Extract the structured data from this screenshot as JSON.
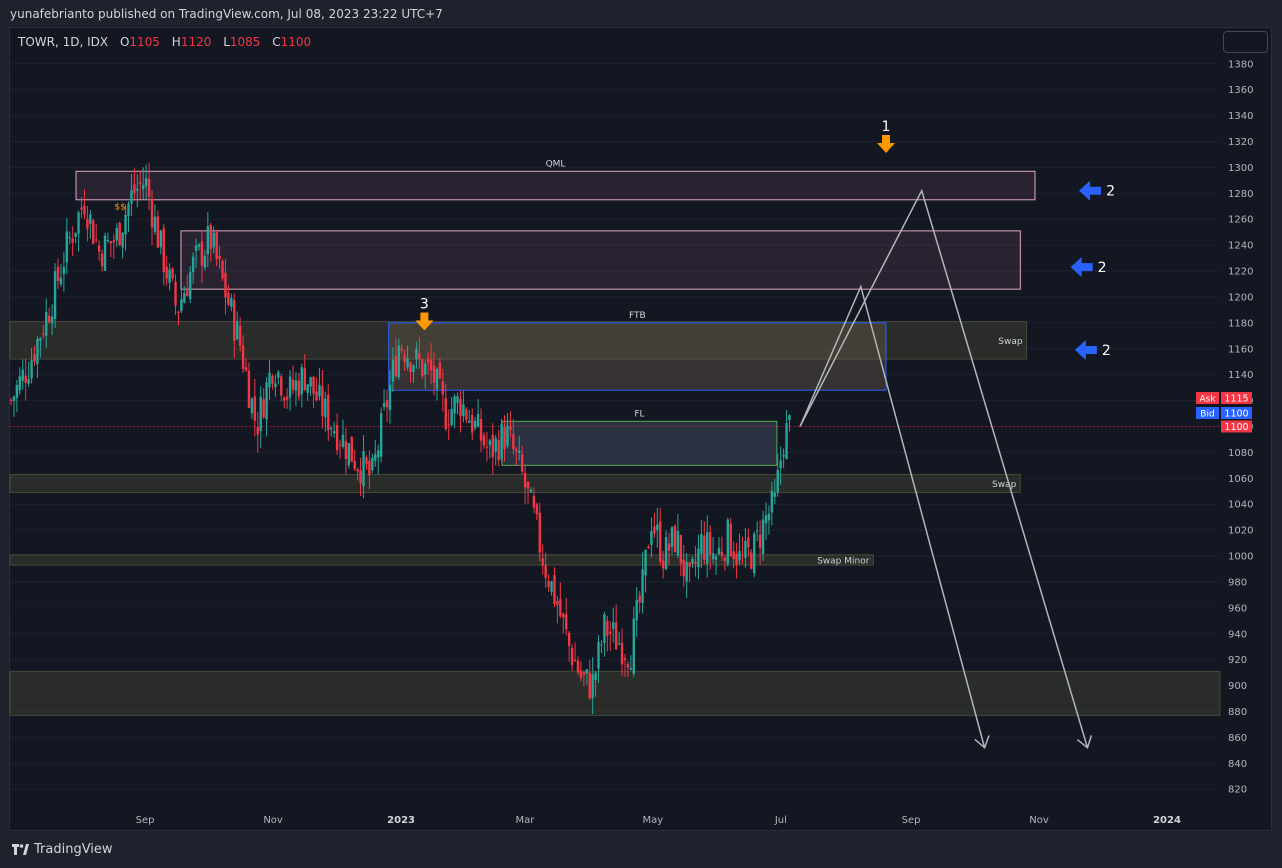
{
  "header": {
    "published": "yunafebrianto published on TradingView.com, Jul 08, 2023 23:22 UTC+7"
  },
  "symbol": {
    "name": "TOWR, 1D, IDX",
    "o_label": "O",
    "o_value": "1105",
    "h_label": "H",
    "h_value": "1120",
    "l_label": "L",
    "l_value": "1085",
    "c_label": "C",
    "c_value": "1100"
  },
  "footer": {
    "brand": "TradingView"
  },
  "colors": {
    "up": "#26a69a",
    "down": "#f23645",
    "zone_swap": "#2e2e22",
    "zone_qml": "#b3718f",
    "zone_ftb": "#2962ff",
    "zone_fl": "#4caf50",
    "orange_arrow": "#ff9800",
    "blue_arrow": "#2962ff",
    "projection": "#b2b5be"
  },
  "chart_data": {
    "type": "candlestick",
    "ylim": [
      810,
      1395
    ],
    "yticks": [
      820,
      840,
      860,
      880,
      900,
      920,
      940,
      960,
      980,
      1000,
      1020,
      1040,
      1060,
      1080,
      1100,
      1120,
      1140,
      1160,
      1180,
      1200,
      1220,
      1240,
      1260,
      1280,
      1300,
      1320,
      1340,
      1360,
      1380
    ],
    "xticks": [
      {
        "label": "Sep",
        "major": false
      },
      {
        "label": "Nov",
        "major": false
      },
      {
        "label": "2023",
        "major": true
      },
      {
        "label": "Mar",
        "major": false
      },
      {
        "label": "May",
        "major": false
      },
      {
        "label": "Jul",
        "major": false
      },
      {
        "label": "Sep",
        "major": false
      },
      {
        "label": "Nov",
        "major": false
      },
      {
        "label": "2024",
        "major": true
      }
    ],
    "last_price": "1100",
    "ask": {
      "label": "Ask",
      "value": "1115"
    },
    "bid": {
      "label": "Bid",
      "value": "1100"
    },
    "price_path": [
      [
        "2022-07-01",
        1120
      ],
      [
        "2022-07-10",
        1150
      ],
      [
        "2022-07-20",
        1195
      ],
      [
        "2022-07-28",
        1240
      ],
      [
        "2022-08-05",
        1275
      ],
      [
        "2022-08-12",
        1235
      ],
      [
        "2022-08-20",
        1245
      ],
      [
        "2022-08-28",
        1280
      ],
      [
        "2022-09-03",
        1290
      ],
      [
        "2022-09-10",
        1240
      ],
      [
        "2022-09-18",
        1190
      ],
      [
        "2022-09-26",
        1225
      ],
      [
        "2022-10-04",
        1245
      ],
      [
        "2022-10-10",
        1210
      ],
      [
        "2022-10-18",
        1165
      ],
      [
        "2022-10-26",
        1100
      ],
      [
        "2022-11-03",
        1150
      ],
      [
        "2022-11-10",
        1125
      ],
      [
        "2022-11-18",
        1140
      ],
      [
        "2022-11-26",
        1115
      ],
      [
        "2022-12-04",
        1095
      ],
      [
        "2022-12-12",
        1075
      ],
      [
        "2022-12-20",
        1060
      ],
      [
        "2022-12-26",
        1110
      ],
      [
        "2023-01-02",
        1165
      ],
      [
        "2023-01-10",
        1150
      ],
      [
        "2023-01-18",
        1140
      ],
      [
        "2023-01-24",
        1110
      ],
      [
        "2023-01-31",
        1120
      ],
      [
        "2023-02-07",
        1100
      ],
      [
        "2023-02-14",
        1080
      ],
      [
        "2023-02-22",
        1095
      ],
      [
        "2023-03-01",
        1065
      ],
      [
        "2023-03-07",
        1030
      ],
      [
        "2023-03-12",
        995
      ],
      [
        "2023-03-18",
        965
      ],
      [
        "2023-03-24",
        930
      ],
      [
        "2023-03-30",
        905
      ],
      [
        "2023-04-04",
        900
      ],
      [
        "2023-04-10",
        945
      ],
      [
        "2023-04-16",
        935
      ],
      [
        "2023-04-22",
        925
      ],
      [
        "2023-04-28",
        975
      ],
      [
        "2023-05-02",
        1030
      ],
      [
        "2023-05-08",
        1000
      ],
      [
        "2023-05-14",
        1015
      ],
      [
        "2023-05-20",
        975
      ],
      [
        "2023-05-26",
        1010
      ],
      [
        "2023-06-02",
        1000
      ],
      [
        "2023-06-08",
        1015
      ],
      [
        "2023-06-14",
        995
      ],
      [
        "2023-06-20",
        1005
      ],
      [
        "2023-06-26",
        1030
      ],
      [
        "2023-06-30",
        1040
      ],
      [
        "2023-07-04",
        1090
      ],
      [
        "2023-07-07",
        1100
      ]
    ],
    "zones": [
      {
        "name": "QML",
        "label": "QML",
        "start": "2022-08-01",
        "end": "2023-11-01",
        "low": 1275,
        "high": 1297,
        "kind": "qml"
      },
      {
        "name": "supply-upper",
        "label": "",
        "start": "2022-09-20",
        "end": "2023-10-25",
        "low": 1206,
        "high": 1251,
        "kind": "qml"
      },
      {
        "name": "Swap",
        "label": "Swap",
        "start": "2022-07-01",
        "end": "2023-10-28",
        "low": 1152,
        "high": 1181,
        "kind": "swap"
      },
      {
        "name": "FTB",
        "label": "FTB",
        "start": "2022-12-28",
        "end": "2023-08-22",
        "low": 1128,
        "high": 1180,
        "kind": "ftb"
      },
      {
        "name": "FL",
        "label": "FL",
        "start": "2023-02-20",
        "end": "2023-07-01",
        "low": 1070,
        "high": 1104,
        "kind": "fl"
      },
      {
        "name": "Swap-2",
        "label": "Swap",
        "start": "2022-07-01",
        "end": "2023-10-25",
        "low": 1049,
        "high": 1063,
        "kind": "swap"
      },
      {
        "name": "Swap Minor",
        "label": "Swap Minor",
        "start": "2022-07-01",
        "end": "2023-08-16",
        "low": 993,
        "high": 1001,
        "kind": "swap"
      },
      {
        "name": "demand-bottom",
        "label": "",
        "start": "2022-07-01",
        "end": "2023-12-31",
        "low": 877,
        "high": 911,
        "kind": "swap"
      }
    ],
    "liquidity_label": "$$",
    "projection_1": [
      [
        "2023-07-12",
        1100
      ],
      [
        "2023-08-10",
        1208
      ],
      [
        "2023-10-08",
        852
      ]
    ],
    "projection_2": [
      [
        "2023-07-12",
        1100
      ],
      [
        "2023-09-08",
        1282
      ],
      [
        "2023-11-26",
        852
      ]
    ],
    "annotations": [
      {
        "text": "1",
        "kind": "orange-down",
        "date": "2023-08-22",
        "price": 1325
      },
      {
        "text": "3",
        "kind": "orange-down",
        "date": "2023-01-14",
        "price": 1188
      },
      {
        "text": "2",
        "kind": "blue-left",
        "date": "2023-11-22",
        "price": 1282
      },
      {
        "text": "2",
        "kind": "blue-left",
        "date": "2023-11-18",
        "price": 1223
      },
      {
        "text": "2",
        "kind": "blue-left",
        "date": "2023-11-20",
        "price": 1159
      }
    ]
  }
}
